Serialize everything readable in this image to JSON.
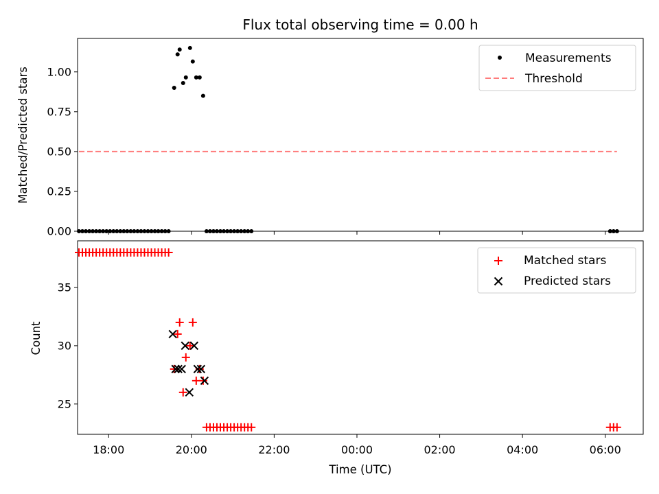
{
  "title": "Flux total observing time = 0.00 h",
  "colors": {
    "measurement": "#000000",
    "threshold": "#ff7b7b",
    "matched": "#ff0000",
    "predicted": "#000000"
  },
  "chart_data": [
    {
      "type": "scatter",
      "panel": "top",
      "xlabel": "",
      "ylabel": "Matched/Predicted stars",
      "xlim": [
        "17:15",
        "30:55"
      ],
      "ylim": [
        0,
        1.21
      ],
      "yticks": [
        "0.00",
        "0.25",
        "0.50",
        "0.75",
        "1.00"
      ],
      "xticks": [
        "18:00",
        "20:00",
        "22:00",
        "00:00",
        "02:00",
        "04:00",
        "06:00"
      ],
      "legend": {
        "placement": "top-right",
        "entries": [
          {
            "label": "Measurements",
            "marker": "dot",
            "series": "measurements"
          },
          {
            "label": "Threshold",
            "marker": "dashed-line",
            "series": "threshold"
          }
        ]
      },
      "series": [
        {
          "name": "Measurements",
          "marker": "dot",
          "points": [
            [
              "17:17",
              0
            ],
            [
              "17:22",
              0
            ],
            [
              "17:27",
              0
            ],
            [
              "17:32",
              0
            ],
            [
              "17:37",
              0
            ],
            [
              "17:42",
              0
            ],
            [
              "17:47",
              0
            ],
            [
              "17:52",
              0
            ],
            [
              "17:57",
              0
            ],
            [
              "18:02",
              0
            ],
            [
              "18:07",
              0
            ],
            [
              "18:12",
              0
            ],
            [
              "18:17",
              0
            ],
            [
              "18:22",
              0
            ],
            [
              "18:27",
              0
            ],
            [
              "18:32",
              0
            ],
            [
              "18:37",
              0
            ],
            [
              "18:42",
              0
            ],
            [
              "18:47",
              0
            ],
            [
              "18:52",
              0
            ],
            [
              "18:57",
              0
            ],
            [
              "19:02",
              0
            ],
            [
              "19:07",
              0
            ],
            [
              "19:12",
              0
            ],
            [
              "19:17",
              0
            ],
            [
              "19:22",
              0
            ],
            [
              "19:27",
              0
            ],
            [
              "19:35",
              0.9
            ],
            [
              "19:40",
              1.11
            ],
            [
              "19:43",
              1.14
            ],
            [
              "19:48",
              0.93
            ],
            [
              "19:52",
              0.965
            ],
            [
              "19:58",
              1.15
            ],
            [
              "20:02",
              1.065
            ],
            [
              "20:07",
              0.965
            ],
            [
              "20:12",
              0.965
            ],
            [
              "20:17",
              0.85
            ],
            [
              "20:22",
              0
            ],
            [
              "20:27",
              0
            ],
            [
              "20:32",
              0
            ],
            [
              "20:37",
              0
            ],
            [
              "20:42",
              0
            ],
            [
              "20:47",
              0
            ],
            [
              "20:52",
              0
            ],
            [
              "20:57",
              0
            ],
            [
              "21:02",
              0
            ],
            [
              "21:07",
              0
            ],
            [
              "21:12",
              0
            ],
            [
              "21:17",
              0
            ],
            [
              "21:22",
              0
            ],
            [
              "21:27",
              0
            ],
            [
              "30:07",
              0
            ],
            [
              "30:12",
              0
            ],
            [
              "30:17",
              0
            ]
          ]
        },
        {
          "name": "Threshold",
          "marker": "dashed-line",
          "points": [
            [
              "17:17",
              0.5
            ],
            [
              "30:17",
              0.5
            ]
          ]
        }
      ]
    },
    {
      "type": "scatter",
      "panel": "bottom",
      "xlabel": "Time (UTC)",
      "ylabel": "Count",
      "xlim": [
        "17:15",
        "30:55"
      ],
      "ylim": [
        22.4,
        39.0
      ],
      "yticks": [
        "25",
        "30",
        "35"
      ],
      "xticks": [
        "18:00",
        "20:00",
        "22:00",
        "00:00",
        "02:00",
        "04:00",
        "06:00"
      ],
      "legend": {
        "placement": "top-right",
        "entries": [
          {
            "label": "Matched stars",
            "marker": "plus",
            "series": "matched"
          },
          {
            "label": "Predicted stars",
            "marker": "x",
            "series": "predicted"
          }
        ]
      },
      "series": [
        {
          "name": "Matched stars",
          "marker": "plus",
          "points": [
            [
              "17:17",
              38
            ],
            [
              "17:22",
              38
            ],
            [
              "17:27",
              38
            ],
            [
              "17:32",
              38
            ],
            [
              "17:37",
              38
            ],
            [
              "17:42",
              38
            ],
            [
              "17:47",
              38
            ],
            [
              "17:52",
              38
            ],
            [
              "17:57",
              38
            ],
            [
              "18:02",
              38
            ],
            [
              "18:07",
              38
            ],
            [
              "18:12",
              38
            ],
            [
              "18:17",
              38
            ],
            [
              "18:22",
              38
            ],
            [
              "18:27",
              38
            ],
            [
              "18:32",
              38
            ],
            [
              "18:37",
              38
            ],
            [
              "18:42",
              38
            ],
            [
              "18:47",
              38
            ],
            [
              "18:52",
              38
            ],
            [
              "18:57",
              38
            ],
            [
              "19:02",
              38
            ],
            [
              "19:07",
              38
            ],
            [
              "19:12",
              38
            ],
            [
              "19:17",
              38
            ],
            [
              "19:22",
              38
            ],
            [
              "19:27",
              38
            ],
            [
              "19:35",
              28
            ],
            [
              "19:40",
              31
            ],
            [
              "19:43",
              32
            ],
            [
              "19:48",
              26
            ],
            [
              "19:52",
              29
            ],
            [
              "19:58",
              30
            ],
            [
              "20:02",
              32
            ],
            [
              "20:07",
              27
            ],
            [
              "20:12",
              28
            ],
            [
              "20:17",
              27
            ],
            [
              "20:22",
              23
            ],
            [
              "20:27",
              23
            ],
            [
              "20:32",
              23
            ],
            [
              "20:37",
              23
            ],
            [
              "20:42",
              23
            ],
            [
              "20:47",
              23
            ],
            [
              "20:52",
              23
            ],
            [
              "20:57",
              23
            ],
            [
              "21:02",
              23
            ],
            [
              "21:07",
              23
            ],
            [
              "21:12",
              23
            ],
            [
              "21:17",
              23
            ],
            [
              "21:22",
              23
            ],
            [
              "21:27",
              23
            ],
            [
              "30:07",
              23
            ],
            [
              "30:12",
              23
            ],
            [
              "30:17",
              23
            ]
          ]
        },
        {
          "name": "Predicted stars",
          "marker": "x",
          "points": [
            [
              "19:33",
              31
            ],
            [
              "19:37",
              28
            ],
            [
              "19:41",
              28
            ],
            [
              "19:46",
              28
            ],
            [
              "19:51",
              30
            ],
            [
              "19:57",
              26
            ],
            [
              "20:04",
              30
            ],
            [
              "20:09",
              28
            ],
            [
              "20:14",
              28
            ],
            [
              "20:19",
              27
            ]
          ]
        }
      ]
    }
  ]
}
